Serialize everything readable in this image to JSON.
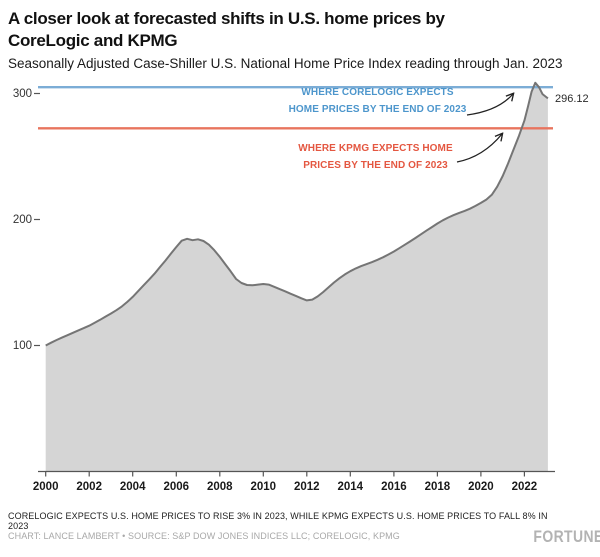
{
  "header": {
    "title_line1": "A closer look at forecasted shifts in U.S. home prices by",
    "title_line2": "CoreLogic and KPMG",
    "subtitle": "Seasonally Adjusted Case-Shiller U.S. National Home Price Index reading through Jan. 2023"
  },
  "chart_data": {
    "type": "area",
    "title": "A closer look at forecasted shifts in U.S. home prices by CoreLogic and KPMG",
    "subtitle": "Seasonally Adjusted Case-Shiller U.S. National Home Price Index reading through Jan. 2023",
    "xlabel": "",
    "ylabel": "",
    "x_ticks": [
      2000,
      2002,
      2004,
      2006,
      2008,
      2010,
      2012,
      2014,
      2016,
      2018,
      2020,
      2022
    ],
    "y_ticks": [
      100,
      200,
      300
    ],
    "x_range": [
      2000,
      2023.3
    ],
    "y_range": [
      0,
      310
    ],
    "grid": false,
    "area_fill": "#d5d5d5",
    "line_color": "#757575",
    "series": [
      {
        "name": "Case-Shiller U.S. National Home Price Index (seasonally adjusted)",
        "x": [
          2000,
          2000.25,
          2000.5,
          2000.75,
          2001,
          2001.25,
          2001.5,
          2001.75,
          2002,
          2002.25,
          2002.5,
          2002.75,
          2003,
          2003.25,
          2003.5,
          2003.75,
          2004,
          2004.25,
          2004.5,
          2004.75,
          2005,
          2005.25,
          2005.5,
          2005.75,
          2006,
          2006.25,
          2006.5,
          2006.75,
          2007,
          2007.25,
          2007.5,
          2007.75,
          2008,
          2008.25,
          2008.5,
          2008.75,
          2009,
          2009.25,
          2009.5,
          2009.75,
          2010,
          2010.25,
          2010.5,
          2010.75,
          2011,
          2011.25,
          2011.5,
          2011.75,
          2012,
          2012.25,
          2012.5,
          2012.75,
          2013,
          2013.25,
          2013.5,
          2013.75,
          2014,
          2014.25,
          2014.5,
          2014.75,
          2015,
          2015.25,
          2015.5,
          2015.75,
          2016,
          2016.25,
          2016.5,
          2016.75,
          2017,
          2017.25,
          2017.5,
          2017.75,
          2018,
          2018.25,
          2018.5,
          2018.75,
          2019,
          2019.25,
          2019.5,
          2019.75,
          2020,
          2020.25,
          2020.5,
          2020.75,
          2021,
          2021.25,
          2021.5,
          2021.75,
          2022,
          2022.17,
          2022.33,
          2022.5,
          2022.67,
          2022.83,
          2023.08
        ],
        "values": [
          100,
          102.2,
          104.4,
          106.3,
          108.2,
          110.1,
          112,
          113.8,
          115.7,
          118,
          120.4,
          122.9,
          125.4,
          128,
          131,
          134.6,
          138.6,
          143.2,
          147.8,
          152.3,
          157,
          162.2,
          167.4,
          172.8,
          178.2,
          183.2,
          184.7,
          183.6,
          184.3,
          182.9,
          180,
          175.6,
          170.3,
          164.6,
          158.8,
          152.8,
          149.6,
          148,
          147.8,
          148.3,
          148.8,
          148.3,
          146.6,
          144.8,
          143,
          141.1,
          139.4,
          137.5,
          135.8,
          136.4,
          139,
          142.4,
          146.2,
          150,
          153.4,
          156.4,
          159,
          161.2,
          163,
          164.6,
          166.2,
          168,
          170,
          172.2,
          174.6,
          177.2,
          179.9,
          182.6,
          185.4,
          188.3,
          191.2,
          194,
          196.8,
          199.4,
          201.6,
          203.5,
          205.2,
          206.8,
          208.6,
          210.8,
          213.2,
          215.8,
          219.6,
          226,
          234.5,
          244.5,
          255.5,
          266.5,
          278.5,
          290,
          301.5,
          308.5,
          305,
          299.5,
          296.12
        ]
      }
    ],
    "latest_point": {
      "x": 2023.08,
      "value": 296.12,
      "label": "296.12"
    },
    "reference_lines": [
      {
        "name": "corelogic-forecast",
        "value": 305.0,
        "line_color": "#7cadd6",
        "text_color": "#4d96cc",
        "label_line1": "WHERE CORELOGIC EXPECTS",
        "label_line2": "HOME PRICES BY THE END OF 2023"
      },
      {
        "name": "kpmg-forecast",
        "value": 272.4,
        "line_color": "#e8745e",
        "text_color": "#e45741",
        "label_line1": "WHERE KPMG EXPECTS HOME",
        "label_line2": "PRICES BY THE END OF 2023"
      }
    ]
  },
  "footer": {
    "note": "CORELOGIC EXPECTS U.S. HOME PRICES TO RISE 3% IN 2023, WHILE KPMG EXPECTS U.S. HOME PRICES TO FALL 8% IN 2023",
    "credit": "CHART: LANCE LAMBERT • SOURCE: S&P DOW JONES INDICES LLC; CORELOGIC, KPMG",
    "brand": "FORTUNE"
  }
}
